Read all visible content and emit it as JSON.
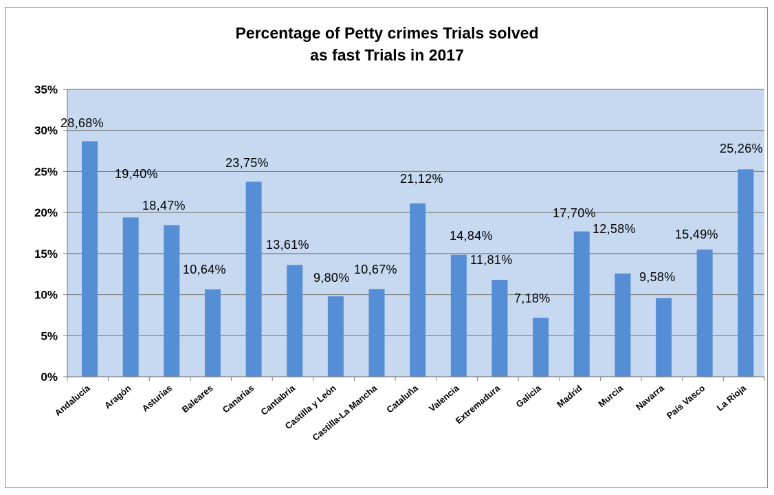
{
  "chart_data": {
    "type": "bar",
    "title_lines": [
      "Percentage of Petty crimes Trials solved",
      "as fast Trials in 2017"
    ],
    "categories": [
      "Andalucía",
      "Aragón",
      "Asturias",
      "Baleares",
      "Canarias",
      "Cantabria",
      "Castilla y León",
      "Castilla-La Mancha",
      "Cataluña",
      "Valencia",
      "Extremadura",
      "Galicia",
      "Madrid",
      "Murcia",
      "Navarra",
      "País Vasco",
      "La Rioja"
    ],
    "values": [
      28.68,
      19.4,
      18.47,
      10.64,
      23.75,
      13.61,
      9.8,
      10.67,
      21.12,
      14.84,
      11.81,
      7.18,
      17.7,
      12.58,
      9.58,
      15.49,
      25.26
    ],
    "data_labels": [
      "28,68%",
      "19,40%",
      "18,47%",
      "10,64%",
      "23,75%",
      "13,61%",
      "9,80%",
      "10,67%",
      "21,12%",
      "14,84%",
      "11,81%",
      "7,18%",
      "17,70%",
      "12,58%",
      "9,58%",
      "15,49%",
      "25,26%"
    ],
    "y_ticks": [
      0,
      5,
      10,
      15,
      20,
      25,
      30,
      35
    ],
    "y_tick_labels": [
      "0%",
      "5%",
      "10%",
      "15%",
      "20%",
      "25%",
      "30%",
      "35%"
    ],
    "ylim": [
      0,
      35
    ],
    "xlabel": "",
    "ylabel": "",
    "grid": true,
    "legend": "none",
    "colors": {
      "bar": "#558ed5",
      "plot_background": "#c6d9f1",
      "gridline": "#808080",
      "axis": "#808080"
    }
  }
}
